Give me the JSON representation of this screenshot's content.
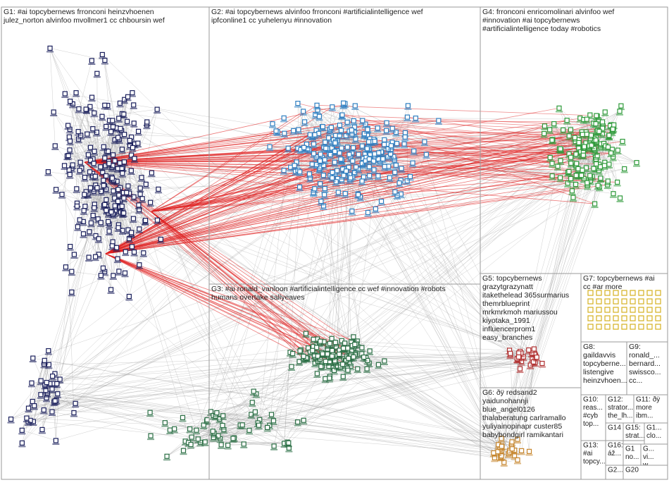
{
  "groups": [
    {
      "lines": [
        "G1: #ai topcybernews frronconi heinzvhoenen",
        "julez_norton alvinfoo mvollmer1 cc chboursin wef"
      ]
    },
    {
      "lines": [
        "G2: #ai topcybernews alvinfoo frronconi #artificialintelligence wef",
        "ipfconline1 cc yuhelenyu #innovation"
      ]
    },
    {
      "lines": [
        "G4: frronconi enricomolinari alvinfoo wef",
        "#innovation #ai topcybernews",
        "#artificialintelligence today #robotics"
      ]
    },
    {
      "lines": [
        "G3: #ai ronald_vanloon #artificialintelligence cc wef #innovation #robots",
        "humans overtake sallyeaves"
      ]
    },
    {
      "lines": [
        "G5: topcybernews",
        "grazytgrazynatt",
        "itakethelead 365surmarius",
        "themrblueprint",
        "mrkmrkmoh mariussou",
        "kiyotaka_1991",
        "influencerprom1",
        "easy_branches"
      ]
    },
    {
      "lines": [
        "G6: ðÿ redsand2",
        "yaidunohannji",
        "blue_angel0126",
        "thalaberatung carlramallo",
        "yuliyainopinapr custer85",
        "babybondgirl ramikantari"
      ]
    },
    {
      "lines": [
        "G7: topcybernews #ai",
        "cc #ar more"
      ]
    },
    {
      "lines": [
        "G8:",
        "gaildavvis",
        "topcyberne...",
        "listengive",
        "heinzvhoen..."
      ]
    },
    {
      "lines": [
        "G9:",
        "ronald_...",
        "bernard...",
        "swissco...",
        "cc..."
      ]
    },
    {
      "lines": [
        "G10:",
        "reas...",
        "#cyb",
        "top..."
      ]
    },
    {
      "lines": [
        "G12:",
        "strator...",
        "the_lh..."
      ]
    },
    {
      "lines": [
        "G11: ðÿ",
        "more",
        "ibm..."
      ]
    },
    {
      "lines": [
        "G14"
      ]
    },
    {
      "lines": [
        "G15:",
        "strat..."
      ]
    },
    {
      "lines": [
        "G1...",
        "clo..."
      ]
    },
    {
      "lines": [
        "G13:",
        "#ai",
        "topcy..."
      ]
    },
    {
      "lines": [
        "G16:",
        "áž..."
      ]
    },
    {
      "lines": [
        "G1",
        "no..."
      ]
    },
    {
      "lines": [
        "G...",
        "vi...",
        "w..."
      ]
    },
    {
      "lines": [
        "G2..."
      ]
    },
    {
      "lines": [
        "G20"
      ]
    }
  ]
}
